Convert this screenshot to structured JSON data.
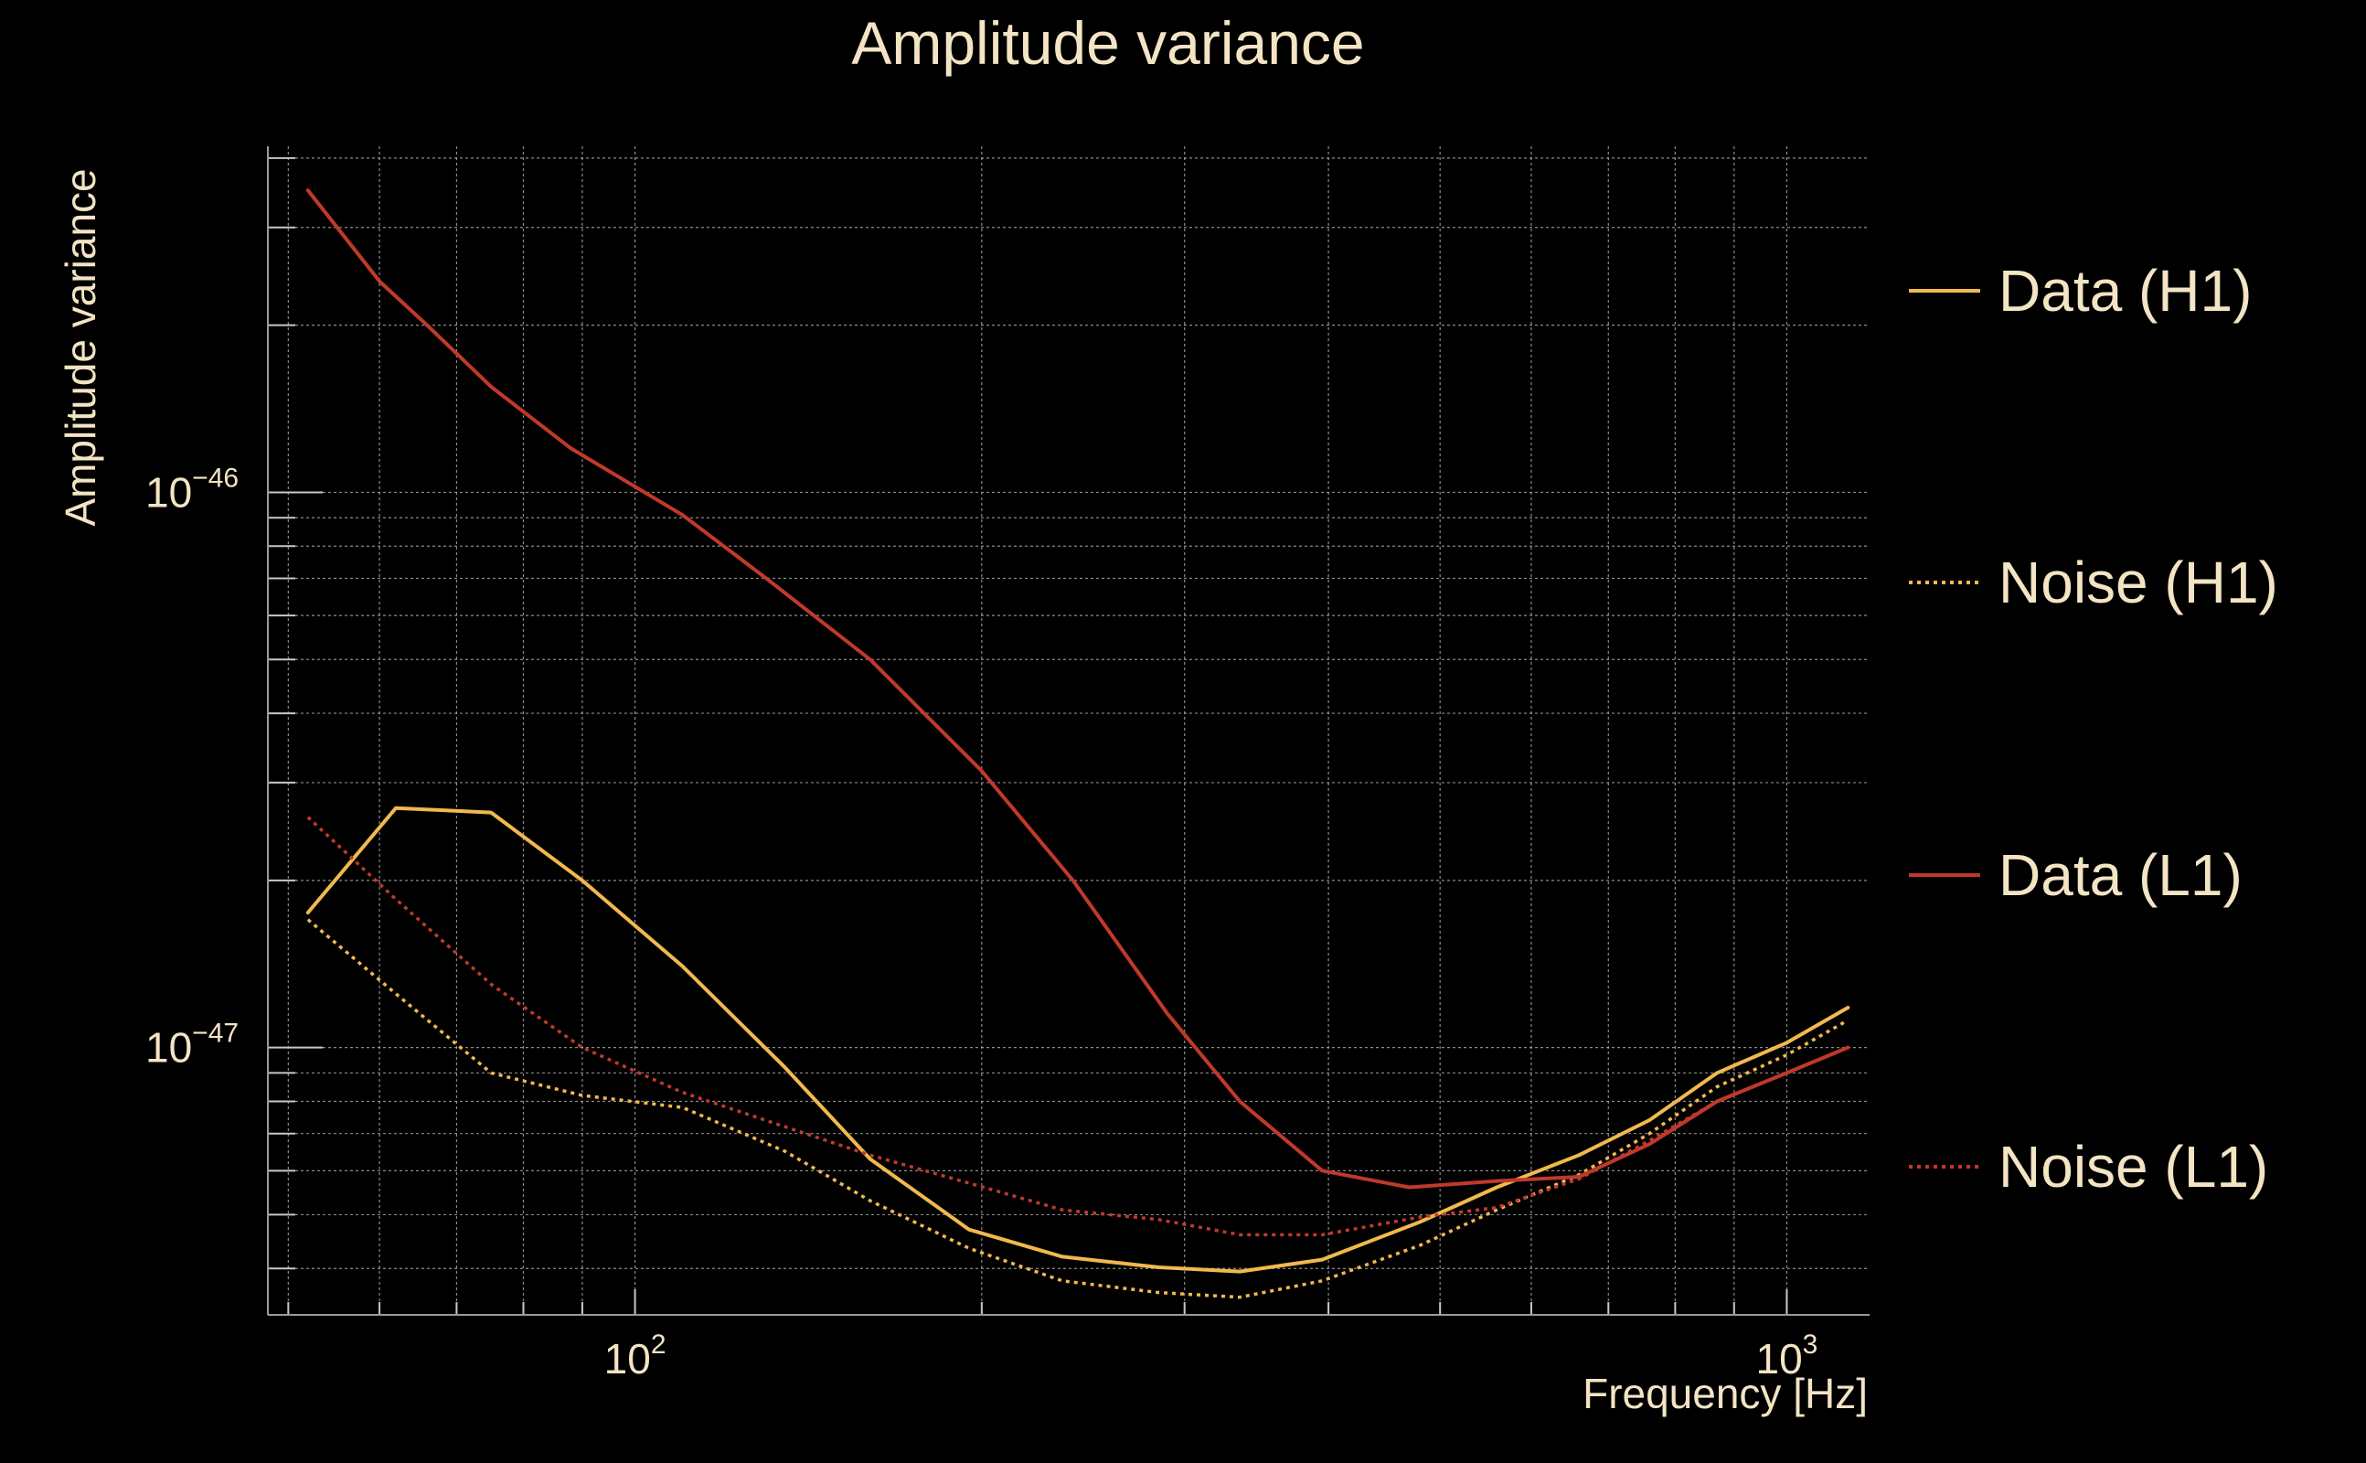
{
  "chart_data": {
    "type": "line",
    "title": "Amplitude variance",
    "xlabel": "Frequency [Hz]",
    "ylabel": "Amplitude variance",
    "xscale": "log",
    "yscale": "log",
    "xlim": [
      48,
      1180
    ],
    "ylim": [
      3.3e-48,
      4.2e-46
    ],
    "grid": true,
    "legend_position": "right",
    "x_ticks": [
      {
        "base": "10",
        "exp": "2",
        "value": 100
      },
      {
        "base": "10",
        "exp": "3",
        "value": 1000
      }
    ],
    "y_ticks": [
      {
        "base": "10",
        "exp": "−46",
        "value": 1e-46
      },
      {
        "base": "10",
        "exp": "−47",
        "value": 1e-47
      }
    ],
    "series": [
      {
        "name": "Data (H1)",
        "color": "#f0b94e",
        "style": "solid",
        "points": [
          [
            52,
            1.75e-47
          ],
          [
            62,
            2.7e-47
          ],
          [
            75,
            2.65e-47
          ],
          [
            90,
            2e-47
          ],
          [
            110,
            1.4e-47
          ],
          [
            135,
            9.2e-48
          ],
          [
            160,
            6.3e-48
          ],
          [
            195,
            4.7e-48
          ],
          [
            235,
            4.2e-48
          ],
          [
            285,
            4.02e-48
          ],
          [
            335,
            3.95e-48
          ],
          [
            395,
            4.15e-48
          ],
          [
            480,
            4.85e-48
          ],
          [
            560,
            5.6e-48
          ],
          [
            660,
            6.4e-48
          ],
          [
            760,
            7.4e-48
          ],
          [
            870,
            9e-48
          ],
          [
            1000,
            1.02e-47
          ],
          [
            1130,
            1.18e-47
          ]
        ]
      },
      {
        "name": "Noise (H1)",
        "color": "#f0b94e",
        "style": "dotted",
        "points": [
          [
            52,
            1.7e-47
          ],
          [
            62,
            1.25e-47
          ],
          [
            75,
            9e-48
          ],
          [
            90,
            8.2e-48
          ],
          [
            110,
            7.8e-48
          ],
          [
            135,
            6.5e-48
          ],
          [
            160,
            5.3e-48
          ],
          [
            195,
            4.35e-48
          ],
          [
            235,
            3.8e-48
          ],
          [
            285,
            3.62e-48
          ],
          [
            335,
            3.55e-48
          ],
          [
            395,
            3.8e-48
          ],
          [
            480,
            4.4e-48
          ],
          [
            560,
            5.1e-48
          ],
          [
            660,
            5.9e-48
          ],
          [
            760,
            7e-48
          ],
          [
            870,
            8.5e-48
          ],
          [
            1000,
            9.7e-48
          ],
          [
            1130,
            1.12e-47
          ]
        ]
      },
      {
        "name": "Data (L1)",
        "color": "#c0392b",
        "style": "solid",
        "points": [
          [
            52,
            3.5e-46
          ],
          [
            60,
            2.4e-46
          ],
          [
            66,
            2e-46
          ],
          [
            75,
            1.55e-46
          ],
          [
            88,
            1.2e-46
          ],
          [
            110,
            9.1e-47
          ],
          [
            130,
            7e-47
          ],
          [
            160,
            5e-47
          ],
          [
            200,
            3.15e-47
          ],
          [
            240,
            2e-47
          ],
          [
            290,
            1.15e-47
          ],
          [
            335,
            8e-48
          ],
          [
            395,
            6e-48
          ],
          [
            470,
            5.6e-48
          ],
          [
            560,
            5.75e-48
          ],
          [
            660,
            5.85e-48
          ],
          [
            760,
            6.7e-48
          ],
          [
            870,
            8e-48
          ],
          [
            1000,
            9e-48
          ],
          [
            1130,
            1e-47
          ]
        ]
      },
      {
        "name": "Noise (L1)",
        "color": "#c0392b",
        "style": "dotted",
        "points": [
          [
            52,
            2.6e-47
          ],
          [
            62,
            1.85e-47
          ],
          [
            75,
            1.3e-47
          ],
          [
            90,
            1e-47
          ],
          [
            110,
            8.3e-48
          ],
          [
            135,
            7.2e-48
          ],
          [
            160,
            6.4e-48
          ],
          [
            195,
            5.7e-48
          ],
          [
            235,
            5.1e-48
          ],
          [
            285,
            4.9e-48
          ],
          [
            335,
            4.6e-48
          ],
          [
            395,
            4.6e-48
          ],
          [
            480,
            4.95e-48
          ],
          [
            560,
            5.15e-48
          ],
          [
            660,
            5.8e-48
          ],
          [
            760,
            6.8e-48
          ],
          [
            870,
            8e-48
          ],
          [
            1000,
            9e-48
          ],
          [
            1130,
            1e-47
          ]
        ]
      }
    ]
  }
}
